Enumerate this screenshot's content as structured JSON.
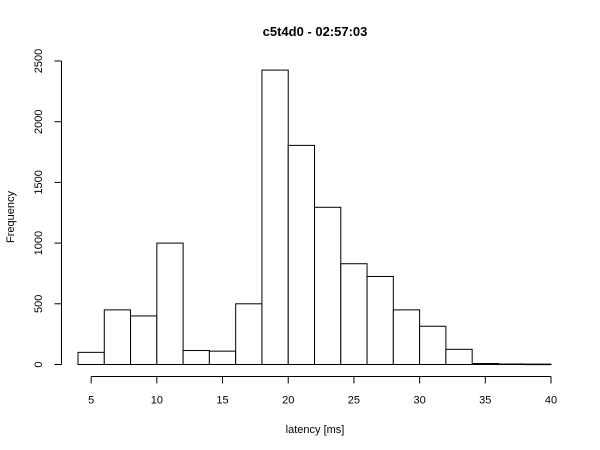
{
  "chart_data": {
    "type": "bar",
    "title": "c5t4d0 - 02:57:03",
    "xlabel": "latency [ms]",
    "ylabel": "Frequency",
    "xlim": [
      4,
      40
    ],
    "ylim": [
      0,
      2500
    ],
    "x_ticks": [
      5,
      10,
      15,
      20,
      25,
      30,
      35,
      40
    ],
    "y_ticks": [
      0,
      500,
      1000,
      1500,
      2000,
      2500
    ],
    "bins": [
      {
        "start": 4,
        "end": 6,
        "value": 100
      },
      {
        "start": 6,
        "end": 8,
        "value": 450
      },
      {
        "start": 8,
        "end": 10,
        "value": 400
      },
      {
        "start": 10,
        "end": 12,
        "value": 1000
      },
      {
        "start": 12,
        "end": 14,
        "value": 115
      },
      {
        "start": 14,
        "end": 16,
        "value": 110
      },
      {
        "start": 16,
        "end": 18,
        "value": 500
      },
      {
        "start": 18,
        "end": 20,
        "value": 2425
      },
      {
        "start": 20,
        "end": 22,
        "value": 1805
      },
      {
        "start": 22,
        "end": 24,
        "value": 1295
      },
      {
        "start": 24,
        "end": 26,
        "value": 830
      },
      {
        "start": 26,
        "end": 28,
        "value": 725
      },
      {
        "start": 28,
        "end": 30,
        "value": 450
      },
      {
        "start": 30,
        "end": 32,
        "value": 315
      },
      {
        "start": 32,
        "end": 34,
        "value": 125
      },
      {
        "start": 34,
        "end": 36,
        "value": 8
      },
      {
        "start": 36,
        "end": 38,
        "value": 4
      },
      {
        "start": 38,
        "end": 40,
        "value": 3
      }
    ],
    "grid": false,
    "legend": "none"
  }
}
